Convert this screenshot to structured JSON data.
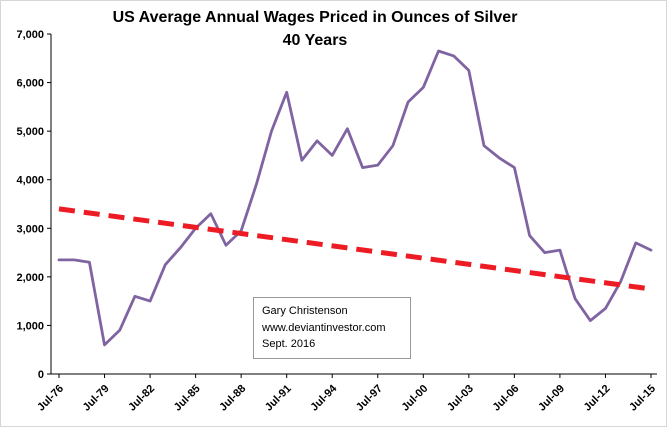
{
  "chart_data": {
    "type": "line",
    "title": "US Average Annual Wages Priced in Ounces of Silver",
    "subtitle": "40 Years",
    "ylim": [
      0,
      7000
    ],
    "y_tick_step": 1000,
    "grid": false,
    "legend": false,
    "x_tick_every": 3,
    "x_tick_labels": [
      "Jul-76",
      "Jul-79",
      "Jul-82",
      "Jul-85",
      "Jul-88",
      "Jul-91",
      "Jul-94",
      "Jul-97",
      "Jul-00",
      "Jul-03",
      "Jul-06",
      "Jul-09",
      "Jul-12",
      "Jul-15"
    ],
    "series": [
      {
        "name": "US average annual wages in ounces of silver",
        "color": "#8064A2",
        "values": [
          2350,
          2350,
          2300,
          600,
          900,
          1600,
          1500,
          2250,
          2600,
          3000,
          3300,
          2650,
          2950,
          3900,
          5000,
          5800,
          4400,
          4800,
          4500,
          5050,
          4250,
          4300,
          4700,
          5600,
          5900,
          6650,
          6550,
          6250,
          4700,
          4450,
          4250,
          2850,
          2500,
          2550,
          1550,
          1100,
          1350,
          1900,
          2700,
          2550
        ]
      }
    ],
    "trend": {
      "name": "Linear trend",
      "style": "dashed",
      "color": "#ED1C24",
      "start": 3400,
      "end": 1750
    },
    "annotation": {
      "lines": [
        "Gary Christenson",
        "www.deviantinvestor.com",
        "Sept. 2016"
      ]
    },
    "colors": {
      "axis": "#000000",
      "background": "#ffffff"
    }
  }
}
